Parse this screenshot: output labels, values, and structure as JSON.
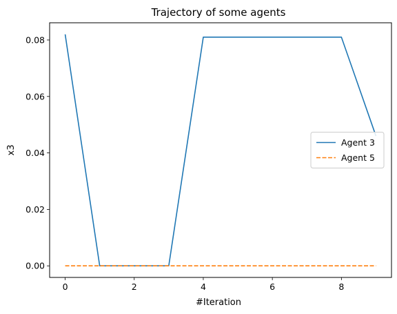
{
  "chart_data": {
    "type": "line",
    "title": "Trajectory of some agents",
    "xlabel": "#Iteration",
    "ylabel": "x3",
    "xlim": [
      -0.45,
      9.45
    ],
    "ylim": [
      -0.0041,
      0.0861
    ],
    "xticks": [
      0,
      2,
      4,
      6,
      8
    ],
    "xtick_labels": [
      "0",
      "2",
      "4",
      "6",
      "8"
    ],
    "yticks": [
      0.0,
      0.02,
      0.04,
      0.06,
      0.08
    ],
    "ytick_labels": [
      "0.00",
      "0.02",
      "0.04",
      "0.06",
      "0.08"
    ],
    "grid": false,
    "legend_position": "center-right",
    "x": [
      0,
      1,
      2,
      3,
      4,
      5,
      6,
      7,
      8,
      9
    ],
    "series": [
      {
        "name": "Agent 3",
        "color": "#1f77b4",
        "line_style": "solid",
        "values": [
          0.082,
          0.0,
          0.0,
          0.0,
          0.081,
          0.081,
          0.081,
          0.081,
          0.081,
          0.046
        ]
      },
      {
        "name": "Agent 5",
        "color": "#ff7f0e",
        "line_style": "dashed",
        "values": [
          0.0,
          0.0,
          0.0,
          0.0,
          0.0,
          0.0,
          0.0,
          0.0,
          0.0,
          0.0
        ]
      }
    ]
  }
}
